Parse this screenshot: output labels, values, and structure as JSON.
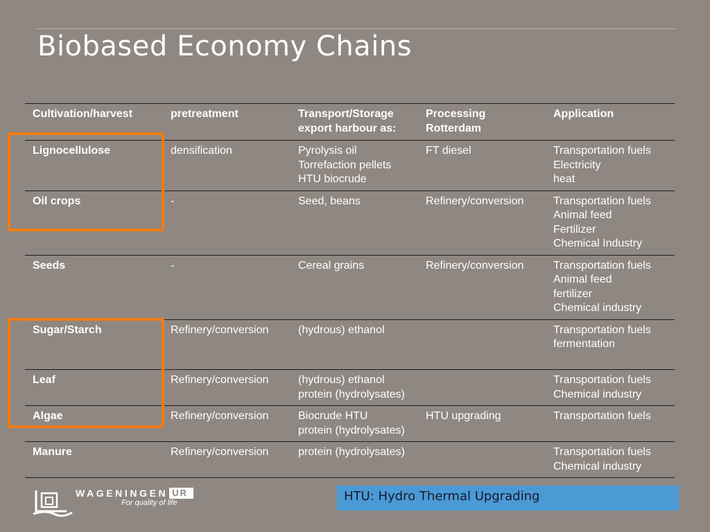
{
  "slide": {
    "title": "Biobased Economy Chains"
  },
  "table": {
    "headers": [
      [
        "Cultivation/harvest"
      ],
      [
        "pretreatment"
      ],
      [
        "Transport/Storage",
        "export harbour as:"
      ],
      [
        "Processing",
        "Rotterdam"
      ],
      [
        "Application"
      ]
    ],
    "rows": [
      {
        "source": "Lignocellulose",
        "pretreatment": [
          "densification"
        ],
        "transport": [
          "Pyrolysis oil",
          "Torrefaction pellets",
          "HTU biocrude"
        ],
        "processing": [
          "FT diesel"
        ],
        "application": [
          "Transportation fuels",
          "Electricity",
          "heat"
        ]
      },
      {
        "source": "Oil crops",
        "pretreatment": [
          "-"
        ],
        "transport": [
          "Seed, beans"
        ],
        "processing": [
          "Refinery/conversion"
        ],
        "application": [
          "Transportation fuels",
          "Animal feed",
          "Fertilizer",
          "Chemical Industry"
        ]
      },
      {
        "source": "Seeds",
        "pretreatment": [
          "-"
        ],
        "transport": [
          "Cereal grains"
        ],
        "processing": [
          "Refinery/conversion"
        ],
        "application": [
          "Transportation fuels",
          "Animal feed",
          "fertilizer",
          "Chemical industry"
        ]
      },
      {
        "source": "Sugar/Starch",
        "pretreatment": [
          "Refinery/conversion"
        ],
        "transport": [
          "(hydrous) ethanol"
        ],
        "processing": [],
        "application": [
          "Transportation fuels",
          "fermentation",
          ""
        ]
      },
      {
        "source": "Leaf",
        "pretreatment": [
          "Refinery/conversion"
        ],
        "transport": [
          "(hydrous) ethanol",
          "protein (hydrolysates)"
        ],
        "processing": [],
        "application": [
          "Transportation fuels",
          "Chemical industry"
        ]
      },
      {
        "source": "Algae",
        "pretreatment": [
          "Refinery/conversion"
        ],
        "transport": [
          "Biocrude HTU",
          "protein (hydrolysates)"
        ],
        "processing": [
          "HTU upgrading"
        ],
        "application": [
          "Transportation fuels"
        ]
      },
      {
        "source": "Manure",
        "pretreatment": [
          "Refinery/conversion"
        ],
        "transport": [
          "protein (hydrolysates)"
        ],
        "processing": [],
        "application": [
          "Transportation fuels",
          "Chemical industry"
        ]
      }
    ]
  },
  "highlights": {
    "color": "#f07c14"
  },
  "logo": {
    "name": "WAGENINGEN",
    "suffix": "UR",
    "tagline": "For quality of life",
    "icon": "wageningen-logo-mark"
  },
  "footnote": {
    "text": "HTU: Hydro Thermal Upgrading",
    "background": "#4a9ad6"
  },
  "colors": {
    "background": "#8f8781",
    "text": "#ffffff",
    "rule": "#1e1e1e"
  }
}
